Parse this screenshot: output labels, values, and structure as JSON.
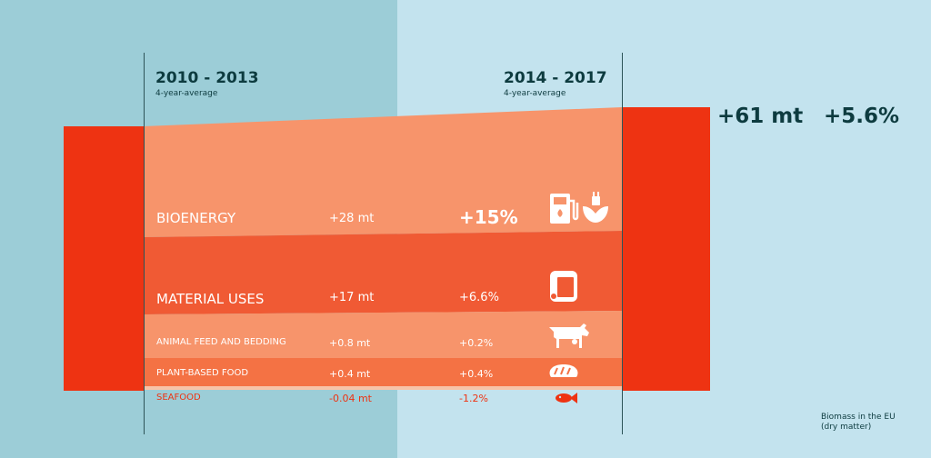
{
  "periods": [
    {
      "label": "2010 - 2013",
      "sublabel": "4-year-average"
    },
    {
      "label": "2014 - 2017",
      "sublabel": "4-year-average"
    }
  ],
  "total": {
    "change_mt": "+61 mt",
    "change_pct": "+5.6%"
  },
  "note": {
    "line1": "Biomass in the EU",
    "line2": "(dry matter)"
  },
  "colors": {
    "left_bg": "#9ccdd7",
    "right_bg": "#c3e3ee",
    "block": "#ee3312",
    "bioenergy": "#f7946b",
    "material": "#f05a34",
    "feed": "#f7946b",
    "food": "#f47244",
    "seafood": "#f7c3a8",
    "seafood_text": "#ee3312"
  },
  "chart_data": {
    "type": "area",
    "categories": [
      "BIOENERGY",
      "MATERIAL USES",
      "ANIMAL FEED AND BEDDING",
      "PLANT-BASED FOOD",
      "SEAFOOD"
    ],
    "change_mt": [
      "+28 mt",
      "+17 mt",
      "+0.8 mt",
      "+0.4 mt",
      "-0.04 mt"
    ],
    "change_pct": [
      "+15%",
      "+6.6%",
      "+0.2%",
      "+0.4%",
      "-1.2%"
    ],
    "values_mt": [
      28,
      17,
      0.8,
      0.4,
      -0.04
    ],
    "values_pct": [
      15,
      6.6,
      0.2,
      0.4,
      -1.2
    ],
    "icons": [
      "fuel-pump-and-plug-icons",
      "paper-roll-icon",
      "cow-icon",
      "bread-icon",
      "fish-icon"
    ],
    "total_change_mt": 61,
    "total_change_pct": 5.6
  }
}
